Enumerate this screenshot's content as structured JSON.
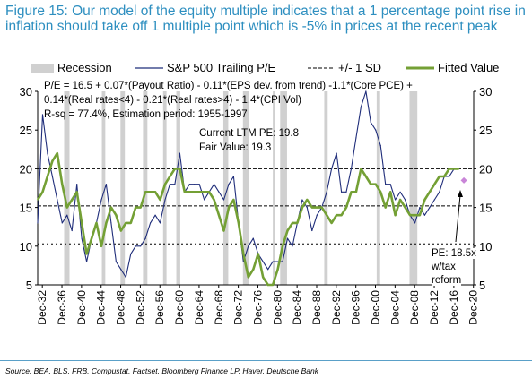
{
  "title": "Figure 15: Our model of the equity multiple indicates that a 1 percentage point rise in inflation should take off 1 multiple point which is -5% in prices at the recent peak",
  "source": "Source: BEA, BLS, FRB, Compustat, Factset, Bloomberg Finance LP, Haver, Deutsche Bank",
  "chart_data": {
    "type": "line",
    "legend": {
      "recession": "Recession",
      "sp500": "S&P 500 Trailing P/E",
      "sd": "+/- 1 SD",
      "fitted": "Fitted Value",
      "placement": "top"
    },
    "annotations": {
      "equation_line1": "P/E = 16.5 + 0.07*(Payout Ratio) - 0.11*(EPS dev. from trend)  -1.1*(Core PCE) +",
      "equation_line2": "0.14*(Real rates<4) - 0.21*(Real rates>4) - 1.4*(CPI Vol)",
      "rsq": "R-sq = 77.4%, Estimation period: 1955-1997",
      "current_ltm": "Current LTM PE: 19.8",
      "fair_value": "Fair Value: 19.3",
      "pe_tax_1": "PE: 18.5x",
      "pe_tax_2": "w/tax",
      "pe_tax_3": "reform"
    },
    "ylim": [
      5,
      30
    ],
    "yticks": [
      "5",
      "10",
      "15",
      "20",
      "25",
      "30"
    ],
    "xlim": [
      1932,
      2021
    ],
    "xticks": [
      "Dec-32",
      "Dec-36",
      "Dec-40",
      "Dec-44",
      "Dec-48",
      "Dec-52",
      "Dec-56",
      "Dec-60",
      "Dec-64",
      "Dec-68",
      "Dec-72",
      "Dec-76",
      "Dec-80",
      "Dec-84",
      "Dec-88",
      "Dec-92",
      "Dec-96",
      "Dec-00",
      "Dec-04",
      "Dec-08",
      "Dec-12",
      "Dec-16",
      "Dec-20"
    ],
    "sd_lines": [
      15.2,
      20.0
    ],
    "mean_line": 10.3,
    "recessions": [
      [
        1937.4,
        1938.5
      ],
      [
        1945.1,
        1945.8
      ],
      [
        1948.9,
        1949.8
      ],
      [
        1953.5,
        1954.4
      ],
      [
        1957.6,
        1958.3
      ],
      [
        1960.3,
        1961.1
      ],
      [
        1969.9,
        1970.9
      ],
      [
        1973.9,
        1975.2
      ],
      [
        1980.0,
        1980.5
      ],
      [
        1981.5,
        1982.9
      ],
      [
        1990.5,
        1991.2
      ],
      [
        2001.2,
        2001.9
      ],
      [
        2007.9,
        2009.5
      ]
    ],
    "series": [
      {
        "name": "S&P 500 Trailing P/E",
        "color": "#1f2d7a",
        "x": [
          1932,
          1933,
          1934,
          1935,
          1936,
          1937,
          1938,
          1939,
          1940,
          1941,
          1942,
          1943,
          1944,
          1945,
          1946,
          1947,
          1948,
          1949,
          1950,
          1951,
          1952,
          1953,
          1954,
          1955,
          1956,
          1957,
          1958,
          1959,
          1960,
          1961,
          1962,
          1963,
          1964,
          1965,
          1966,
          1967,
          1968,
          1969,
          1970,
          1971,
          1972,
          1973,
          1974,
          1975,
          1976,
          1977,
          1978,
          1979,
          1980,
          1981,
          1982,
          1983,
          1984,
          1985,
          1986,
          1987,
          1988,
          1989,
          1990,
          1991,
          1992,
          1993,
          1994,
          1995,
          1996,
          1997,
          1998,
          1999,
          2000,
          2001,
          2002,
          2003,
          2004,
          2005,
          2006,
          2007,
          2008,
          2009,
          2010,
          2011,
          2012,
          2013,
          2014,
          2015,
          2016,
          2017,
          2018
        ],
        "y": [
          13,
          27,
          22,
          19,
          16,
          13,
          14,
          12,
          18,
          11,
          8,
          11,
          13,
          16,
          18,
          13,
          8,
          7,
          6,
          9,
          10,
          10,
          11,
          13,
          14,
          13,
          16,
          18,
          18,
          22,
          17,
          18,
          18,
          18,
          16,
          17,
          18,
          17,
          16,
          18,
          19,
          13,
          8,
          10,
          11,
          9,
          8,
          7,
          8,
          8,
          8,
          11,
          10,
          13,
          16,
          15,
          12,
          14,
          15,
          17,
          20,
          22,
          17,
          17,
          20,
          24,
          28,
          30,
          26,
          25,
          23,
          18,
          18,
          16,
          17,
          16,
          14,
          13,
          15,
          14,
          15,
          16,
          17,
          19,
          19,
          20,
          20
        ]
      },
      {
        "name": "Fitted Value",
        "color": "#74a035",
        "x": [
          1932,
          1933,
          1934,
          1935,
          1936,
          1937,
          1938,
          1939,
          1940,
          1941,
          1942,
          1943,
          1944,
          1945,
          1946,
          1947,
          1948,
          1949,
          1950,
          1951,
          1952,
          1953,
          1954,
          1955,
          1956,
          1957,
          1958,
          1959,
          1960,
          1961,
          1962,
          1963,
          1964,
          1965,
          1966,
          1967,
          1968,
          1969,
          1970,
          1971,
          1972,
          1973,
          1974,
          1975,
          1976,
          1977,
          1978,
          1979,
          1980,
          1981,
          1982,
          1983,
          1984,
          1985,
          1986,
          1987,
          1988,
          1989,
          1990,
          1991,
          1992,
          1993,
          1994,
          1995,
          1996,
          1997,
          1998,
          1999,
          2000,
          2001,
          2002,
          2003,
          2004,
          2005,
          2006,
          2007,
          2008,
          2009,
          2010,
          2011,
          2012,
          2013,
          2014,
          2015,
          2016,
          2017,
          2018
        ],
        "y": [
          16,
          17,
          19,
          21,
          22,
          18,
          15,
          16,
          17,
          13,
          9,
          11,
          13,
          10,
          13,
          15,
          14,
          12,
          13,
          13,
          15,
          15,
          17,
          17,
          17,
          16,
          18,
          19,
          20,
          20,
          17,
          17,
          17,
          17,
          17,
          17,
          16,
          14,
          12,
          15,
          16,
          13,
          9,
          6,
          7,
          9,
          6,
          5,
          5,
          7,
          10,
          12,
          13,
          13,
          15,
          16,
          15,
          15,
          15,
          14,
          13,
          14,
          14,
          15,
          17,
          17,
          20,
          19,
          18,
          18,
          17,
          15,
          17,
          14,
          16,
          15,
          14,
          14,
          14,
          16,
          17,
          18,
          19,
          19,
          20,
          20,
          20
        ]
      }
    ],
    "markers": [
      {
        "name": "PE w/tax reform",
        "x": 2019,
        "y": 18.5,
        "color": "#c985d8"
      }
    ]
  }
}
